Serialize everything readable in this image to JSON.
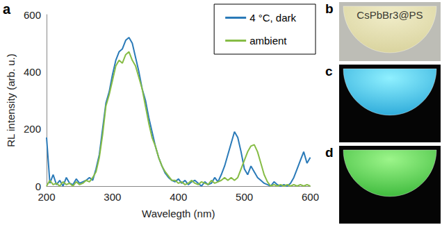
{
  "chart_data": {
    "type": "line",
    "xlabel": "Wavelegth (nm)",
    "ylabel": "RL intensity (arb. u.)",
    "x": [
      200,
      205,
      210,
      215,
      220,
      225,
      230,
      235,
      240,
      245,
      250,
      255,
      260,
      265,
      270,
      275,
      280,
      285,
      290,
      295,
      300,
      305,
      310,
      315,
      320,
      325,
      330,
      335,
      340,
      345,
      350,
      355,
      360,
      365,
      370,
      375,
      380,
      385,
      390,
      395,
      400,
      405,
      410,
      415,
      420,
      425,
      430,
      435,
      440,
      445,
      450,
      455,
      460,
      465,
      470,
      475,
      480,
      485,
      490,
      495,
      500,
      505,
      510,
      515,
      520,
      525,
      530,
      535,
      540,
      545,
      550,
      555,
      560,
      565,
      570,
      575,
      580,
      585,
      590,
      595,
      600
    ],
    "series": [
      {
        "name": "4 °C, dark",
        "color": "#2a7ab8",
        "values": [
          170,
          10,
          40,
          5,
          20,
          0,
          30,
          10,
          5,
          25,
          10,
          15,
          20,
          30,
          20,
          60,
          110,
          200,
          290,
          330,
          390,
          440,
          470,
          480,
          510,
          520,
          500,
          450,
          400,
          340,
          300,
          240,
          190,
          140,
          100,
          70,
          45,
          30,
          20,
          15,
          25,
          10,
          20,
          5,
          15,
          20,
          10,
          0,
          15,
          5,
          10,
          30,
          15,
          40,
          70,
          110,
          150,
          190,
          170,
          120,
          60,
          40,
          70,
          50,
          30,
          20,
          10,
          5,
          0,
          15,
          5,
          0,
          5,
          0,
          10,
          30,
          60,
          90,
          120,
          80,
          100
        ]
      },
      {
        "name": "ambient",
        "color": "#86bc45",
        "values": [
          0,
          20,
          5,
          10,
          0,
          15,
          5,
          10,
          0,
          15,
          5,
          10,
          20,
          15,
          30,
          50,
          100,
          180,
          280,
          320,
          370,
          420,
          440,
          430,
          460,
          470,
          440,
          420,
          380,
          340,
          280,
          220,
          170,
          140,
          100,
          70,
          50,
          35,
          20,
          20,
          10,
          15,
          5,
          10,
          20,
          10,
          5,
          15,
          10,
          5,
          20,
          10,
          15,
          20,
          30,
          20,
          30,
          20,
          30,
          60,
          90,
          120,
          140,
          145,
          120,
          80,
          40,
          15,
          0,
          5,
          0,
          5,
          0,
          5,
          0,
          5,
          0,
          5,
          0,
          5,
          0
        ]
      }
    ],
    "xlim": [
      200,
      600
    ],
    "xticks": [
      200,
      300,
      400,
      500,
      600
    ],
    "ylim": [
      0,
      600
    ],
    "yticks": [
      0,
      200,
      400,
      600
    ],
    "grid": false,
    "legend": "upper right"
  },
  "panel_labels": [
    "a",
    "b",
    "c",
    "d"
  ],
  "photo_label": "CsPbBr3@PS"
}
